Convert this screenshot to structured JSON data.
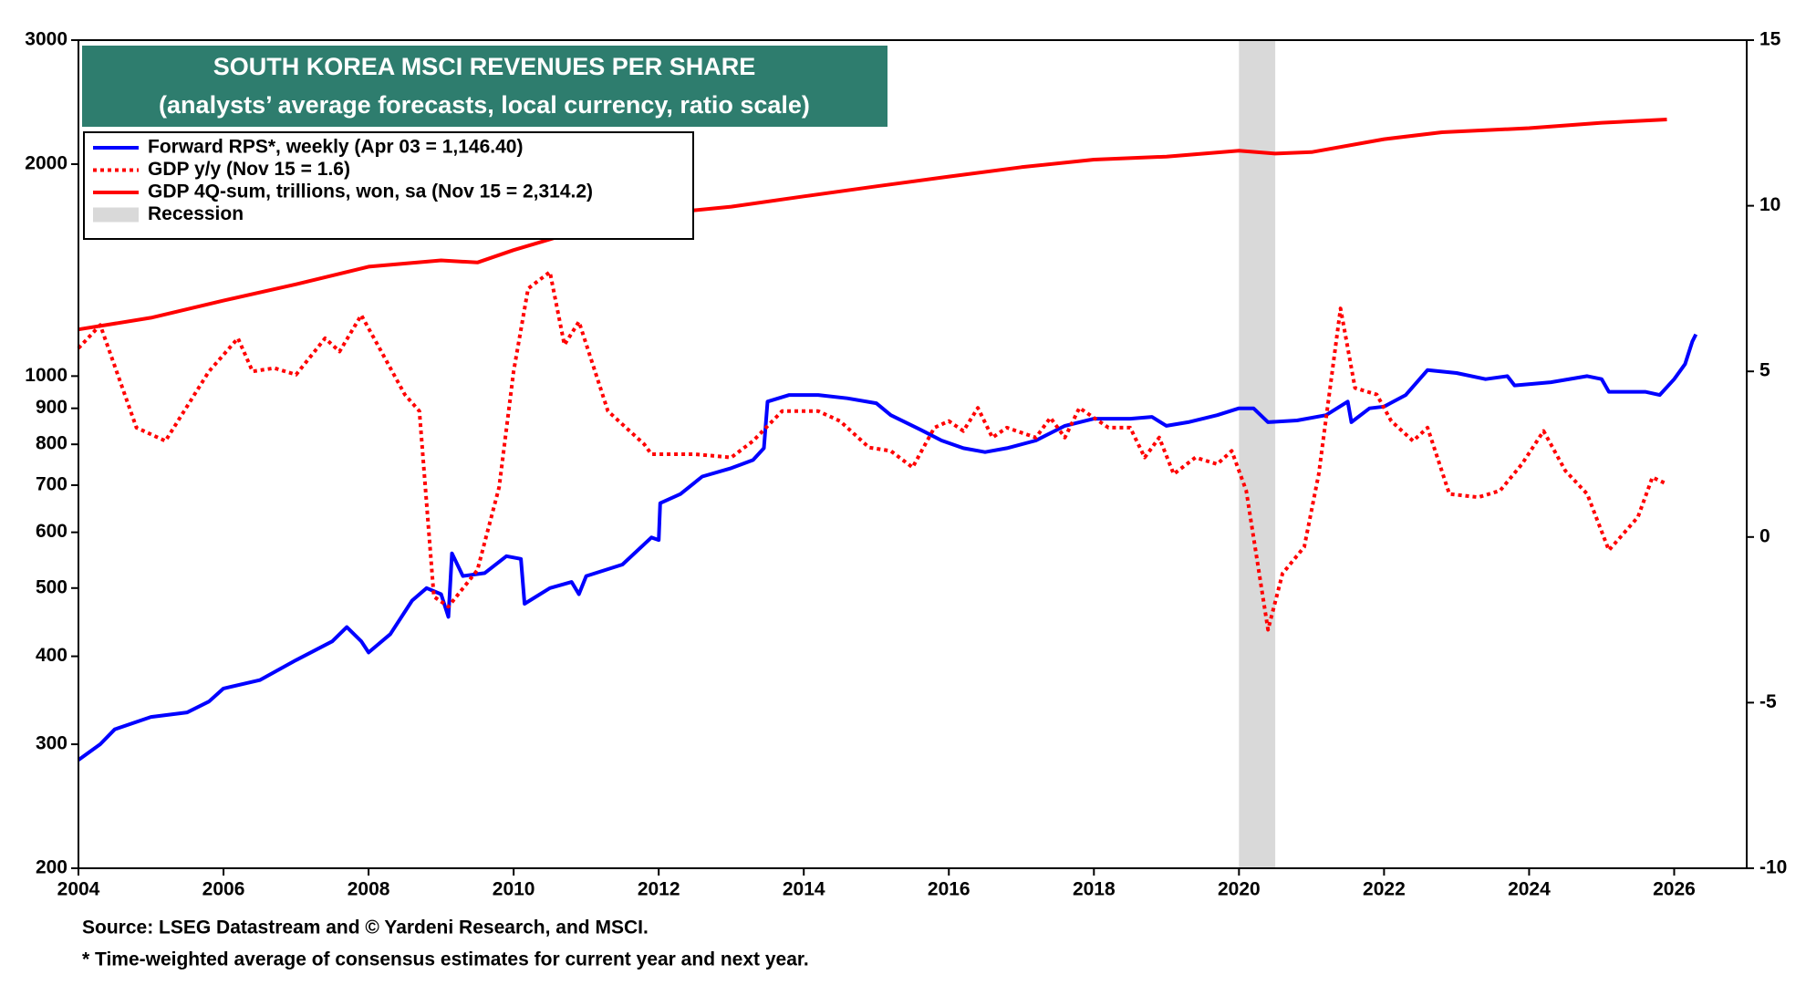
{
  "chart_data": {
    "type": "line",
    "title": "SOUTH KOREA MSCI REVENUES PER SHARE",
    "subtitle": "(analysts’ average forecasts, local currency, ratio scale)",
    "xlim": [
      2004,
      2027
    ],
    "xticks": [
      2004,
      2006,
      2008,
      2010,
      2012,
      2014,
      2016,
      2018,
      2020,
      2022,
      2024,
      2026
    ],
    "ylim": [
      200,
      3000
    ],
    "yticks": [
      200,
      300,
      400,
      500,
      600,
      700,
      800,
      900,
      1000,
      2000,
      3000
    ],
    "y_log": true,
    "y2lim": [
      -10,
      15
    ],
    "y2ticks": [
      -10,
      -5,
      0,
      5,
      10,
      15
    ],
    "legend": "upper left",
    "recessions": [
      {
        "name": "Recession",
        "color": "#d9d9d9",
        "start": 2020.0,
        "end": 2020.5
      }
    ],
    "series": [
      {
        "name": "Forward RPS*, weekly (Apr 03 = 1,146.40)",
        "color": "#0000ff",
        "style": "solid",
        "x": [
          2004.0,
          2004.3,
          2004.5,
          2005.0,
          2005.5,
          2005.8,
          2006.0,
          2006.5,
          2007.0,
          2007.5,
          2007.7,
          2007.9,
          2008.0,
          2008.3,
          2008.6,
          2008.8,
          2009.0,
          2009.1,
          2009.15,
          2009.3,
          2009.6,
          2009.9,
          2010.1,
          2010.15,
          2010.5,
          2010.8,
          2010.9,
          2011.0,
          2011.5,
          2011.9,
          2012.0,
          2012.02,
          2012.3,
          2012.6,
          2013.0,
          2013.3,
          2013.45,
          2013.5,
          2013.8,
          2014.2,
          2014.6,
          2015.0,
          2015.2,
          2015.6,
          2015.9,
          2016.2,
          2016.5,
          2016.8,
          2017.2,
          2017.6,
          2018.0,
          2018.5,
          2018.8,
          2019.0,
          2019.3,
          2019.7,
          2020.0,
          2020.2,
          2020.4,
          2020.8,
          2021.2,
          2021.5,
          2021.55,
          2021.8,
          2022.0,
          2022.3,
          2022.6,
          2023.0,
          2023.4,
          2023.7,
          2023.8,
          2024.3,
          2024.8,
          2025.0,
          2025.1,
          2025.6,
          2025.8,
          2026.0,
          2026.15,
          2026.25,
          2026.3
        ],
        "values": [
          285,
          300,
          315,
          328,
          333,
          345,
          360,
          370,
          395,
          420,
          440,
          420,
          405,
          430,
          480,
          500,
          490,
          455,
          560,
          520,
          525,
          555,
          550,
          475,
          500,
          510,
          490,
          520,
          540,
          590,
          585,
          660,
          680,
          720,
          740,
          760,
          790,
          920,
          940,
          940,
          930,
          915,
          880,
          840,
          810,
          790,
          780,
          790,
          810,
          850,
          870,
          870,
          875,
          850,
          860,
          880,
          900,
          900,
          860,
          865,
          880,
          920,
          860,
          900,
          905,
          940,
          1020,
          1010,
          990,
          1000,
          970,
          980,
          1000,
          990,
          950,
          950,
          940,
          990,
          1040,
          1120,
          1146.4
        ]
      },
      {
        "name": "GDP y/y (Nov 15 = 1.6)",
        "color": "#ff0000",
        "style": "dotted",
        "axis": "y2",
        "x": [
          2004.0,
          2004.3,
          2004.8,
          2005.2,
          2005.8,
          2006.2,
          2006.4,
          2006.7,
          2007.0,
          2007.4,
          2007.6,
          2007.9,
          2008.2,
          2008.5,
          2008.7,
          2008.9,
          2009.1,
          2009.5,
          2009.8,
          2010.0,
          2010.2,
          2010.5,
          2010.7,
          2010.9,
          2011.3,
          2011.8,
          2011.9,
          2012.5,
          2013.0,
          2013.3,
          2013.7,
          2014.2,
          2014.5,
          2014.9,
          2015.2,
          2015.5,
          2015.8,
          2016.0,
          2016.2,
          2016.4,
          2016.6,
          2016.8,
          2017.2,
          2017.4,
          2017.6,
          2017.8,
          2018.2,
          2018.5,
          2018.7,
          2018.9,
          2019.1,
          2019.4,
          2019.7,
          2019.9,
          2020.1,
          2020.4,
          2020.6,
          2020.9,
          2021.1,
          2021.4,
          2021.6,
          2021.9,
          2022.1,
          2022.4,
          2022.6,
          2022.9,
          2023.3,
          2023.6,
          2023.9,
          2024.2,
          2024.5,
          2024.8,
          2025.1,
          2025.5,
          2025.7,
          2025.9
        ],
        "values": [
          5.7,
          6.4,
          3.3,
          2.9,
          5.0,
          6.0,
          5.0,
          5.1,
          4.9,
          6.0,
          5.6,
          6.7,
          5.5,
          4.3,
          3.8,
          -1.8,
          -2.1,
          -1.0,
          1.5,
          5.0,
          7.5,
          8.0,
          5.8,
          6.5,
          3.8,
          2.8,
          2.5,
          2.5,
          2.4,
          2.9,
          3.8,
          3.8,
          3.5,
          2.7,
          2.6,
          2.1,
          3.3,
          3.5,
          3.2,
          3.9,
          3.0,
          3.3,
          3.0,
          3.6,
          3.0,
          3.9,
          3.3,
          3.3,
          2.4,
          3.0,
          1.9,
          2.4,
          2.2,
          2.6,
          1.4,
          -2.8,
          -1.1,
          -0.3,
          1.9,
          6.9,
          4.5,
          4.3,
          3.5,
          2.9,
          3.3,
          1.3,
          1.2,
          1.4,
          2.2,
          3.2,
          2.0,
          1.3,
          -0.4,
          0.6,
          1.8,
          1.6
        ]
      },
      {
        "name": "GDP 4Q-sum, trillions, won, sa (Nov 15 = 2,314.2)",
        "color": "#ff0000",
        "style": "solid",
        "x": [
          2004.0,
          2005.0,
          2006.0,
          2007.0,
          2008.0,
          2009.0,
          2009.5,
          2010.0,
          2011.0,
          2012.0,
          2013.0,
          2014.0,
          2015.0,
          2016.0,
          2017.0,
          2018.0,
          2019.0,
          2020.0,
          2020.5,
          2021.0,
          2022.0,
          2022.8,
          2024.0,
          2025.0,
          2025.9
        ],
        "values": [
          1165,
          1210,
          1280,
          1350,
          1430,
          1460,
          1450,
          1510,
          1620,
          1700,
          1740,
          1800,
          1860,
          1920,
          1980,
          2030,
          2050,
          2090,
          2070,
          2080,
          2170,
          2220,
          2250,
          2290,
          2314.2
        ]
      }
    ],
    "notes": [
      "Source: LSEG Datastream and © Yardeni Research, and MSCI.",
      "* Time-weighted average of consensus estimates for current year and next year."
    ]
  }
}
